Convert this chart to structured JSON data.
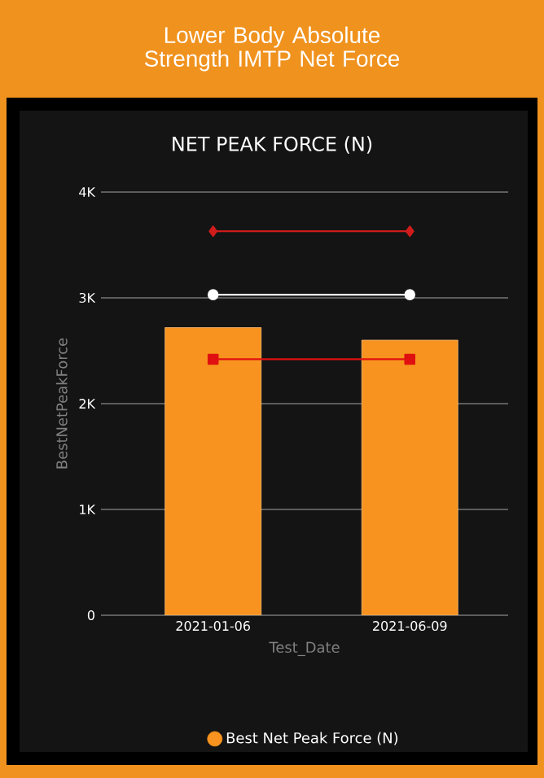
{
  "chart_data": {
    "type": "bar",
    "title": "Lower Body Absolute Strength IMTP Net Force",
    "subtitle": "NET PEAK FORCE (N)",
    "xlabel": "Test_Date",
    "ylabel": "BestNetPeakForce",
    "categories": [
      "2021-01-06",
      "2021-06-09"
    ],
    "series": [
      {
        "name": "Best Net Peak Force (N)",
        "color": "#f7931e",
        "values": [
          2720,
          2600
        ]
      },
      {
        "type": "line",
        "marker": "diamond",
        "color": "#d01c1c",
        "values": [
          3630,
          3630
        ]
      },
      {
        "type": "line",
        "marker": "circle",
        "color": "#ffffff",
        "values": [
          3030,
          3030
        ]
      },
      {
        "type": "line",
        "marker": "square",
        "color": "#e01010",
        "values": [
          2420,
          2420
        ]
      }
    ],
    "ylim": [
      0,
      4000
    ],
    "yticks": [
      {
        "value": 0,
        "label": "0"
      },
      {
        "value": 1000,
        "label": "1K"
      },
      {
        "value": 2000,
        "label": "2K"
      },
      {
        "value": 3000,
        "label": "3K"
      },
      {
        "value": 4000,
        "label": "4K"
      }
    ],
    "grid": "y",
    "legend": "bottom"
  }
}
